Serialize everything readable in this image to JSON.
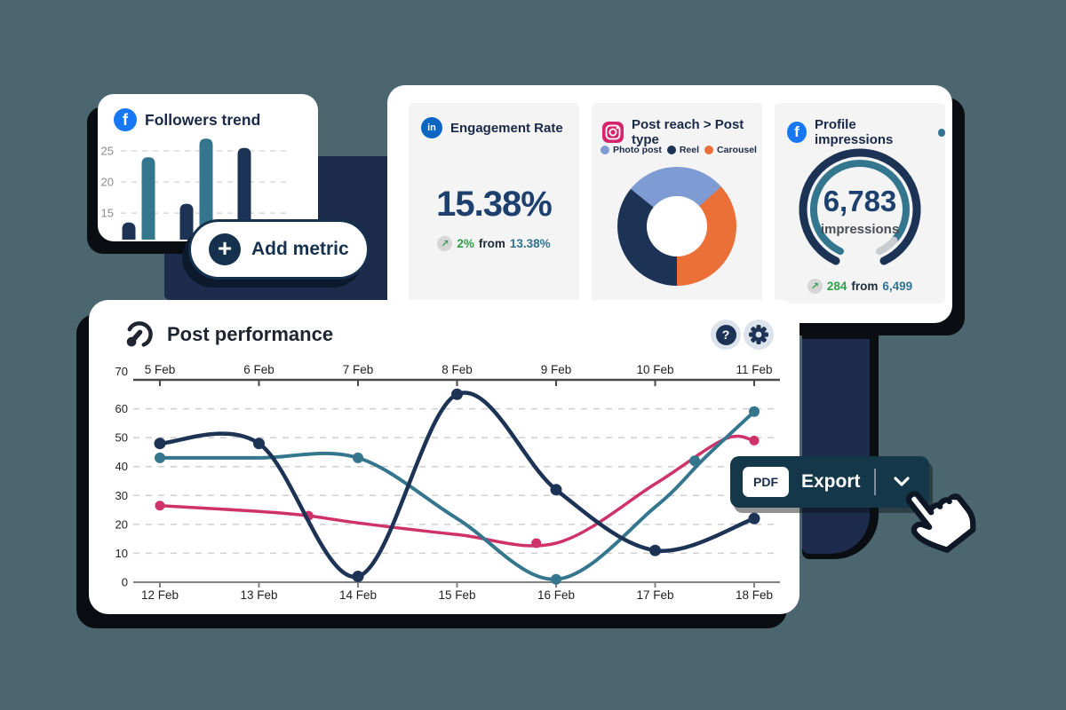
{
  "colors": {
    "background": "#4c6670",
    "shadow": "#0a0d12",
    "navy": "#1d3356",
    "navy_block": "#1d2b4d",
    "teal": "#35768f",
    "pink": "#cf3268",
    "light_blue": "#7f9bd3",
    "orange": "#eb7038",
    "green_positive": "#2f9e49",
    "export_bg": "#14384a",
    "facebook_blue": "#1877f2",
    "linkedin_blue": "#0a66c2",
    "instagram_pink": "#d6256e"
  },
  "icons": {
    "facebook_letter": "f",
    "linkedin_letters": "in",
    "plus": "+",
    "help": "?",
    "trend_up_arrow": "↗"
  },
  "add_metric": {
    "label": "Add metric"
  },
  "cards": {
    "engagement": {
      "title": "Engagement Rate",
      "value": "15.38%",
      "delta": "2%",
      "from_word": "from",
      "previous": "13.38%"
    },
    "impressions_sub": {
      "delta": "284",
      "from_word": "from",
      "previous": "6,499"
    }
  },
  "export": {
    "badge": "PDF",
    "label": "Export"
  },
  "chart_data": [
    {
      "id": "followers_bar",
      "type": "bar",
      "title": "Followers trend",
      "platform_icon": "facebook-icon",
      "values": [
        13.5,
        24,
        16.5,
        27,
        25.5
      ],
      "bar_colors": [
        "#1d3356",
        "#35768f",
        "#1d3356",
        "#35768f",
        "#1d3356"
      ],
      "y_ticks": [
        15,
        20,
        25
      ],
      "y_min": 11.3,
      "grid": "dashed horizontal"
    },
    {
      "id": "post_reach_donut",
      "type": "pie",
      "title": "Post reach > Post type",
      "platform_icon": "instagram-icon",
      "start_angle_deg": -51,
      "segments": [
        {
          "label": "Photo post",
          "pct": 27.5,
          "color": "#7f9bd3"
        },
        {
          "label": "Carousel",
          "pct": 36.7,
          "color": "#eb7038"
        },
        {
          "label": "Reel",
          "pct": 35.8,
          "color": "#1c3356"
        }
      ],
      "legend": [
        {
          "label": "Photo post",
          "color": "#7f9bd3"
        },
        {
          "label": "Reel",
          "color": "#1c3356"
        },
        {
          "label": "Carousel",
          "color": "#eb7038"
        }
      ],
      "legend_position": "top"
    },
    {
      "id": "impressions_gauge",
      "type": "gauge",
      "title": "Profile impressions",
      "platform_icon": "facebook-icon",
      "value": "6,783",
      "unit": "impressions",
      "arc": {
        "start_deg": 205,
        "end_deg": 515,
        "filled_end_deg": 490,
        "track_color": "#1d3356",
        "fill_color": "#35768f",
        "rest_color": "#c9cdd2"
      }
    },
    {
      "id": "post_performance_line",
      "type": "line",
      "title": "Post performance",
      "x_top_labels": [
        "5 Feb",
        "6 Feb",
        "7 Feb",
        "8 Feb",
        "9 Feb",
        "10 Feb",
        "11 Feb"
      ],
      "x_bottom_labels": [
        "12 Feb",
        "13 Feb",
        "14 Feb",
        "15 Feb",
        "16 Feb",
        "17 Feb",
        "18 Feb"
      ],
      "ylim": [
        0,
        70
      ],
      "y_ticks": [
        0,
        10,
        20,
        30,
        40,
        50,
        60,
        70
      ],
      "grid": "dashed horizontal",
      "series": [
        {
          "name": "pink-series",
          "color": "#cf3268",
          "width": 3.5,
          "dot_r": 5.5,
          "points": [
            [
              0,
              26.5
            ],
            [
              1,
              24.5
            ],
            [
              1.5,
              23
            ],
            [
              2,
              20.5
            ],
            [
              3,
              16.5
            ],
            [
              4,
              13.5
            ],
            [
              5,
              34
            ],
            [
              5.7,
              49.5
            ],
            [
              6,
              49
            ]
          ],
          "dots": [
            [
              0,
              26.5
            ],
            [
              1.5,
              23
            ],
            [
              3.8,
              13.5
            ],
            [
              6,
              49
            ]
          ]
        },
        {
          "name": "teal-series",
          "color": "#35768f",
          "width": 4,
          "dot_r": 6,
          "points": [
            [
              0,
              43
            ],
            [
              1,
              43
            ],
            [
              2,
              43
            ],
            [
              3,
              22
            ],
            [
              4,
              1
            ],
            [
              5,
              26
            ],
            [
              5.5,
              43
            ],
            [
              6,
              59
            ]
          ],
          "dots": [
            [
              0,
              43
            ],
            [
              2,
              43
            ],
            [
              4,
              1
            ],
            [
              5.4,
              42
            ],
            [
              6,
              59
            ]
          ]
        },
        {
          "name": "navy-series",
          "color": "#1d3356",
          "width": 4.5,
          "dot_r": 6.5,
          "points": [
            [
              0,
              48
            ],
            [
              1,
              48
            ],
            [
              2,
              2
            ],
            [
              3,
              65
            ],
            [
              4,
              32
            ],
            [
              5,
              11
            ],
            [
              6,
              22
            ]
          ],
          "dots": [
            [
              0,
              48
            ],
            [
              1,
              48
            ],
            [
              2,
              2
            ],
            [
              3,
              65
            ],
            [
              4,
              32
            ],
            [
              5,
              11
            ],
            [
              6,
              22
            ]
          ]
        }
      ]
    }
  ]
}
